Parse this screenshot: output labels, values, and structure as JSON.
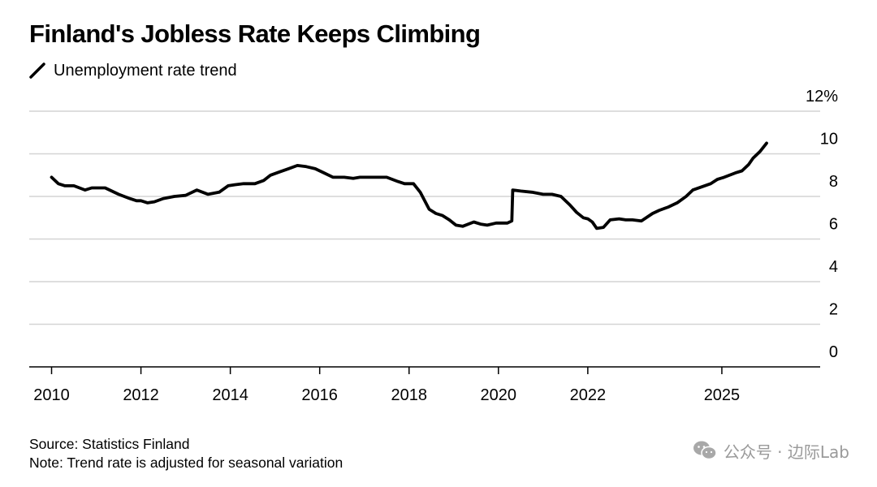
{
  "chart_data": {
    "type": "line",
    "title": "Finland's Jobless Rate Keeps Climbing",
    "series": [
      {
        "name": "Unemployment rate trend",
        "color": "#000000",
        "points": [
          [
            2010.0,
            8.9
          ],
          [
            2010.15,
            8.6
          ],
          [
            2010.3,
            8.5
          ],
          [
            2010.5,
            8.5
          ],
          [
            2010.75,
            8.3
          ],
          [
            2010.9,
            8.4
          ],
          [
            2011.2,
            8.4
          ],
          [
            2011.5,
            8.1
          ],
          [
            2011.75,
            7.9
          ],
          [
            2011.9,
            7.8
          ],
          [
            2012.0,
            7.8
          ],
          [
            2012.15,
            7.7
          ],
          [
            2012.3,
            7.75
          ],
          [
            2012.5,
            7.9
          ],
          [
            2012.75,
            8.0
          ],
          [
            2013.0,
            8.05
          ],
          [
            2013.25,
            8.3
          ],
          [
            2013.5,
            8.1
          ],
          [
            2013.75,
            8.2
          ],
          [
            2013.95,
            8.5
          ],
          [
            2014.1,
            8.55
          ],
          [
            2014.3,
            8.6
          ],
          [
            2014.55,
            8.6
          ],
          [
            2014.75,
            8.75
          ],
          [
            2014.9,
            9.0
          ],
          [
            2015.1,
            9.15
          ],
          [
            2015.3,
            9.3
          ],
          [
            2015.5,
            9.45
          ],
          [
            2015.7,
            9.4
          ],
          [
            2015.9,
            9.3
          ],
          [
            2016.1,
            9.1
          ],
          [
            2016.3,
            8.9
          ],
          [
            2016.55,
            8.9
          ],
          [
            2016.75,
            8.85
          ],
          [
            2016.9,
            8.9
          ],
          [
            2017.2,
            8.9
          ],
          [
            2017.5,
            8.9
          ],
          [
            2017.75,
            8.7
          ],
          [
            2017.9,
            8.6
          ],
          [
            2018.1,
            8.6
          ],
          [
            2018.25,
            8.2
          ],
          [
            2018.45,
            7.4
          ],
          [
            2018.6,
            7.2
          ],
          [
            2018.75,
            7.1
          ],
          [
            2018.9,
            6.9
          ],
          [
            2019.05,
            6.65
          ],
          [
            2019.2,
            6.6
          ],
          [
            2019.45,
            6.8
          ],
          [
            2019.6,
            6.7
          ],
          [
            2019.75,
            6.65
          ],
          [
            2019.95,
            6.75
          ],
          [
            2020.2,
            6.75
          ],
          [
            2020.3,
            6.85
          ],
          [
            2020.32,
            8.3
          ],
          [
            2020.5,
            8.25
          ],
          [
            2020.75,
            8.2
          ],
          [
            2021.0,
            8.1
          ],
          [
            2021.2,
            8.1
          ],
          [
            2021.4,
            8.0
          ],
          [
            2021.6,
            7.6
          ],
          [
            2021.75,
            7.25
          ],
          [
            2021.9,
            7.0
          ],
          [
            2022.0,
            6.95
          ],
          [
            2022.1,
            6.8
          ],
          [
            2022.2,
            6.5
          ],
          [
            2022.35,
            6.55
          ],
          [
            2022.5,
            6.9
          ],
          [
            2022.7,
            6.95
          ],
          [
            2022.85,
            6.9
          ],
          [
            2023.0,
            6.9
          ],
          [
            2023.2,
            6.85
          ],
          [
            2023.45,
            7.2
          ],
          [
            2023.6,
            7.35
          ],
          [
            2023.8,
            7.5
          ],
          [
            2024.0,
            7.7
          ],
          [
            2024.2,
            8.0
          ],
          [
            2024.35,
            8.3
          ],
          [
            2024.55,
            8.45
          ],
          [
            2024.75,
            8.6
          ],
          [
            2024.9,
            8.8
          ],
          [
            2025.05,
            8.9
          ],
          [
            2025.3,
            9.1
          ],
          [
            2025.45,
            9.2
          ],
          [
            2025.6,
            9.5
          ],
          [
            2025.7,
            9.8
          ],
          [
            2025.85,
            10.1
          ],
          [
            2026.0,
            10.5
          ]
        ]
      }
    ],
    "x_ticks": [
      {
        "value": 2010,
        "label": "2010"
      },
      {
        "value": 2012,
        "label": "2012"
      },
      {
        "value": 2014,
        "label": "2014"
      },
      {
        "value": 2016,
        "label": "2016"
      },
      {
        "value": 2018,
        "label": "2018"
      },
      {
        "value": 2020,
        "label": "2020"
      },
      {
        "value": 2022,
        "label": "2022"
      },
      {
        "value": 2025,
        "label": "2025"
      }
    ],
    "y_ticks": [
      {
        "value": 12,
        "label": "12%"
      },
      {
        "value": 10,
        "label": "10"
      },
      {
        "value": 8,
        "label": "8"
      },
      {
        "value": 6,
        "label": "6"
      },
      {
        "value": 4,
        "label": "4"
      },
      {
        "value": 2,
        "label": "2"
      },
      {
        "value": 0,
        "label": "0"
      }
    ],
    "xlim": [
      2009.5,
      2027.2
    ],
    "ylim": [
      0,
      12
    ],
    "grid": "horizontal",
    "y_axis_side": "right",
    "legend": "top-left"
  },
  "footer": {
    "source": "Source: Statistics Finland",
    "note": "Note: Trend rate is adjusted for seasonal variation"
  },
  "watermark": {
    "icon": "wechat-icon",
    "text": "公众号 · 边际Lab"
  }
}
